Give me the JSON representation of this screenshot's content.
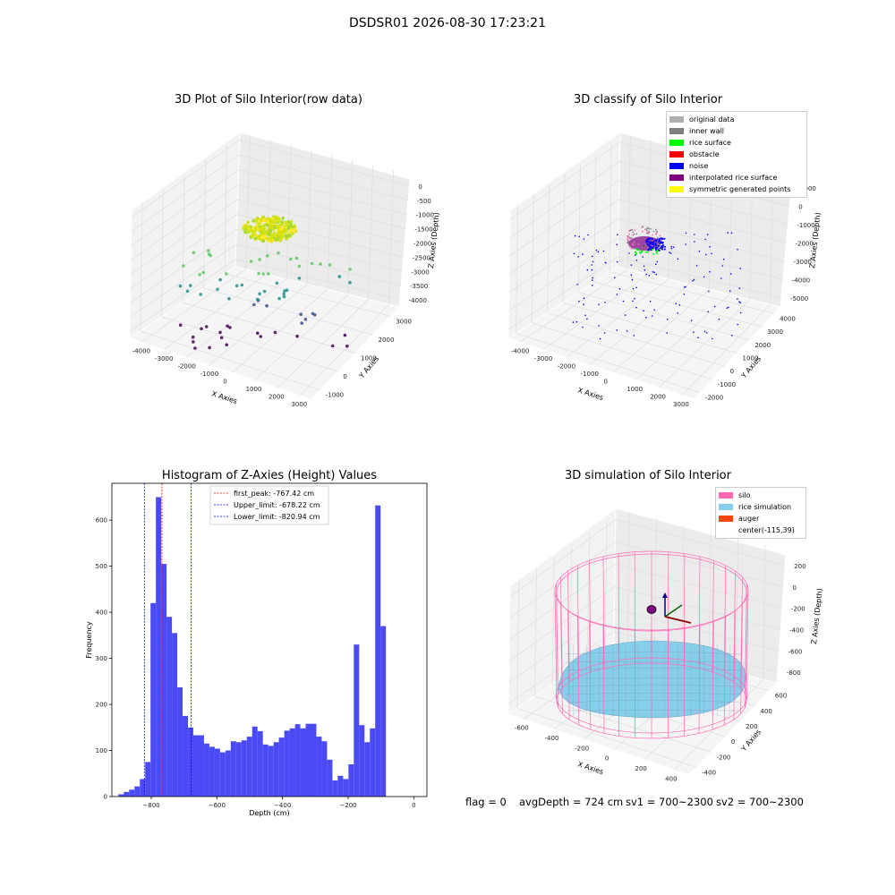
{
  "suptitle": "DSDSR01 2026-08-30 17:23:21",
  "panels": {
    "raw": {
      "title": "3D Plot of Silo Interior(row data)",
      "xlabel": "X Axies",
      "ylabel": "Y Axies",
      "zlabel": "Z Axies (Depth)",
      "xticks": [
        "-4000",
        "-3000",
        "-2000",
        "-1000",
        "0",
        "1000",
        "2000",
        "3000"
      ],
      "yticks": [
        "-1000",
        "0",
        "1000",
        "2000",
        "3000"
      ],
      "zticks": [
        "0",
        "-500",
        "-1000",
        "-1500",
        "-2000",
        "-2500",
        "-3000",
        "-3500",
        "-4000"
      ]
    },
    "classify": {
      "title": "3D classify of Silo Interior",
      "xlabel": "X Axies",
      "ylabel": "Y Axies",
      "zlabel": "Z Axies (Depth)",
      "xticks": [
        "-4000",
        "-3000",
        "-2000",
        "-1000",
        "0",
        "1000",
        "2000",
        "3000"
      ],
      "yticks": [
        "-2000",
        "-1000",
        "0",
        "1000",
        "2000",
        "3000",
        "4000"
      ],
      "zticks": [
        "1000",
        "0",
        "-1000",
        "-2000",
        "-3000",
        "-4000",
        "-5000"
      ],
      "legend": [
        {
          "label": "original data",
          "color": "#b0b0b0"
        },
        {
          "label": "inner wall",
          "color": "#808080"
        },
        {
          "label": "rice surface",
          "color": "#00ff00"
        },
        {
          "label": "obstacle",
          "color": "#ff0000"
        },
        {
          "label": "noise",
          "color": "#0000ff"
        },
        {
          "label": "interpolated rice surface",
          "color": "#800080"
        },
        {
          "label": "symmetric generated points",
          "color": "#ffff00"
        }
      ]
    },
    "simulation": {
      "title": "3D simulation of Silo Interior",
      "xlabel": "X Axies",
      "ylabel": "Y Axies",
      "zlabel": "Z Axies (Depth)",
      "xticks": [
        "-600",
        "-400",
        "-200",
        "0",
        "200",
        "400"
      ],
      "yticks": [
        "-400",
        "-200",
        "0",
        "200",
        "400",
        "600"
      ],
      "zticks": [
        "200",
        "0",
        "-200",
        "-400",
        "-600",
        "-800"
      ],
      "legend": [
        {
          "label": "silo",
          "color": "#ff69b4"
        },
        {
          "label": "rice simulation",
          "color": "#87ceeb"
        },
        {
          "label": "auger",
          "color": "#ff4500"
        },
        {
          "label": "center(-115,39)",
          "color": ""
        }
      ]
    }
  },
  "status": {
    "flag": "flag = 0",
    "avg": "avgDepth = 724 cm",
    "sv1": "sv1 = 700~2300",
    "sv2": "sv2 = 700~2300"
  },
  "chart_data": [
    {
      "type": "scatter",
      "title": "3D Plot of Silo Interior(row data)",
      "xlabel": "X Axies",
      "ylabel": "Y Axies",
      "zlabel": "Z Axies (Depth)",
      "xlim": [
        -4500,
        3500
      ],
      "ylim": [
        -1500,
        3500
      ],
      "zlim": [
        -4300,
        200
      ]
    },
    {
      "type": "scatter",
      "title": "3D classify of Silo Interior",
      "xlabel": "X Axies",
      "ylabel": "Y Axies",
      "zlabel": "Z Axies (Depth)",
      "xlim": [
        -4500,
        3500
      ],
      "ylim": [
        -2500,
        4500
      ],
      "zlim": [
        -5500,
        1000
      ],
      "series": [
        {
          "name": "original data"
        },
        {
          "name": "inner wall"
        },
        {
          "name": "rice surface"
        },
        {
          "name": "obstacle"
        },
        {
          "name": "noise"
        },
        {
          "name": "interpolated rice surface"
        },
        {
          "name": "symmetric generated points"
        }
      ]
    },
    {
      "type": "bar",
      "title": "Histogram of Z-Axies (Height) Values",
      "xlabel": "Depth (cm)",
      "ylabel": "Frequency",
      "xlim": [
        -920,
        40
      ],
      "ylim": [
        0,
        680
      ],
      "xticks": [
        -800,
        -600,
        -400,
        -200,
        0
      ],
      "yticks": [
        0,
        100,
        200,
        300,
        400,
        500,
        600
      ],
      "bin_start": -900,
      "bin_width": 16.3,
      "values": [
        5,
        10,
        15,
        22,
        38,
        75,
        420,
        650,
        505,
        390,
        355,
        237,
        175,
        150,
        133,
        133,
        115,
        108,
        104,
        96,
        100,
        120,
        118,
        122,
        130,
        152,
        142,
        113,
        110,
        118,
        128,
        143,
        148,
        157,
        148,
        158,
        158,
        130,
        120,
        80,
        35,
        45,
        38,
        70,
        330,
        155,
        118,
        148,
        632,
        370
      ],
      "lines": [
        {
          "name": "first_peak: -767.42 cm",
          "x": -767.42,
          "color": "#ff0000"
        },
        {
          "name": "Upper_limit: -678.22 cm",
          "x": -678.22,
          "color": "#0000ff"
        },
        {
          "name": "Lower_limit: -820.94 cm",
          "x": -820.94,
          "color": "#0000ff"
        }
      ]
    },
    {
      "type": "other",
      "title": "3D simulation of Silo Interior",
      "xlabel": "X Axies",
      "ylabel": "Y Axies",
      "zlabel": "Z Axies (Depth)",
      "xlim": [
        -700,
        500
      ],
      "ylim": [
        -500,
        700
      ],
      "zlim": [
        -900,
        300
      ],
      "series": [
        {
          "name": "silo"
        },
        {
          "name": "rice simulation"
        },
        {
          "name": "auger"
        },
        {
          "name": "center(-115,39)"
        }
      ]
    }
  ]
}
